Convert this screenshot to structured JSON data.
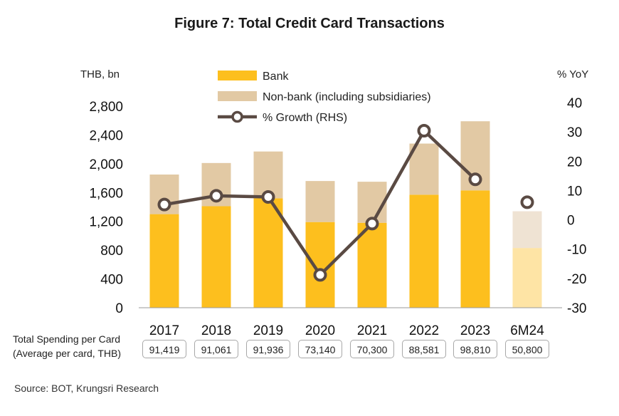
{
  "title": "Figure 7: Total Credit Card Transactions",
  "source": "Source: BOT, Krungsri Research",
  "spending": {
    "label_line1": "Total Spending per Card",
    "label_line2": "(Average per card, THB)",
    "values": [
      "91,419",
      "91,061",
      "91,936",
      "73,140",
      "70,300",
      "88,581",
      "98,810",
      "50,800"
    ]
  },
  "chart_data": {
    "type": "bar",
    "categories": [
      "2017",
      "2018",
      "2019",
      "2020",
      "2021",
      "2022",
      "2023",
      "6M24"
    ],
    "ylabel_left": "THB, bn",
    "ylabel_right": "% YoY",
    "ylim_left": [
      0,
      2800
    ],
    "yticks_left": [
      "0",
      "400",
      "800",
      "1,200",
      "1,600",
      "2,000",
      "2,400",
      "2,800"
    ],
    "ylim_right": [
      -30,
      40
    ],
    "yticks_right": [
      "-30",
      "-20",
      "-10",
      "0",
      "10",
      "20",
      "30",
      "40"
    ],
    "legend_placement": "top-center",
    "series": [
      {
        "name": "Bank",
        "kind": "bar-stacked",
        "color": "#FDBF1E",
        "light_color": "#FEE4A5",
        "values": [
          1300,
          1410,
          1520,
          1190,
          1180,
          1570,
          1630,
          830
        ]
      },
      {
        "name": "Non-bank (including subsidiaries)",
        "kind": "bar-stacked",
        "color": "#E2C9A4",
        "light_color": "#EFE3D3",
        "values": [
          550,
          600,
          650,
          570,
          570,
          710,
          960,
          510
        ]
      },
      {
        "name": "% Growth (RHS)",
        "kind": "line",
        "axis": "right",
        "color": "#5A4A43",
        "values": [
          5.2,
          8.2,
          7.8,
          -18.8,
          -1.3,
          30.4,
          13.8,
          6.0
        ],
        "connected_through": 6
      }
    ],
    "highlight_light_last": true
  }
}
